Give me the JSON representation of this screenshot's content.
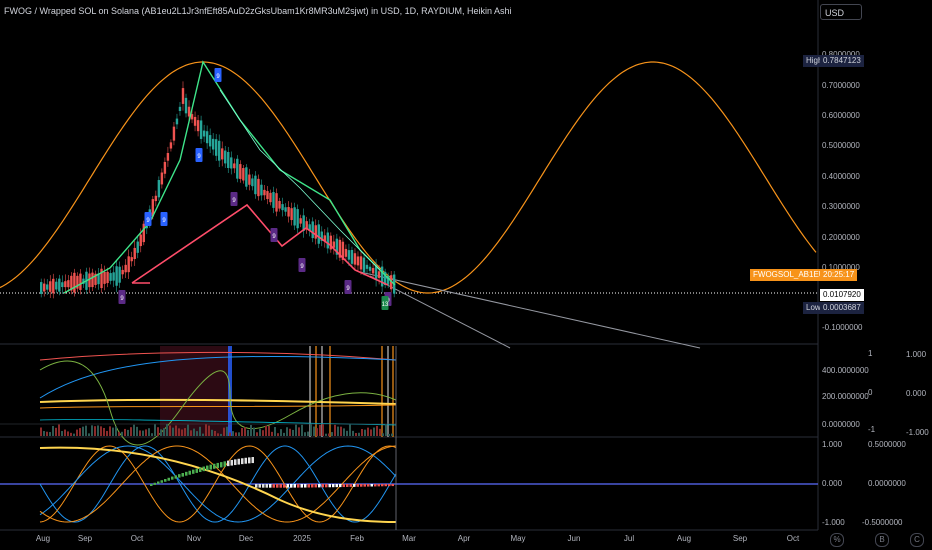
{
  "header": {
    "title": "FWOG / Wrapped SOL on Solana (AB1eu2L1Jr3nfEft85AuD2zGksUbam1Kr8MR3uM2sjwt) in USD, 1D, RAYDIUM, Heikin Ashi",
    "currency": "USD"
  },
  "price_axis": {
    "labels": [
      "0.8000000",
      "0.7000000",
      "0.6000000",
      "0.5000000",
      "0.4000000",
      "0.3000000",
      "0.2000000",
      "0.1000000",
      "-0.1000000"
    ],
    "high_label": "High",
    "high_value": "0.7847123",
    "symbol_tag": "FWOGSOL_AB1EU2.USD",
    "countdown": "20:25:17",
    "last_price": "0.0107920",
    "low_label": "Low",
    "low_value": "0.0003687"
  },
  "pane2_axis": {
    "left": [
      "400.0000000",
      "200.0000000",
      "0.0000000"
    ],
    "mid": [
      "1",
      "0",
      "-1"
    ],
    "right": [
      "1.000",
      "0.000",
      "-1.000"
    ]
  },
  "pane3_axis": {
    "left": [
      "1.000",
      "0.000",
      "-1.000"
    ],
    "right": [
      "0.5000000",
      "0.0000000",
      "-0.5000000"
    ]
  },
  "time_axis": [
    "Aug",
    "Sep",
    "Oct",
    "Nov",
    "Dec",
    "2025",
    "Feb",
    "Mar",
    "Apr",
    "May",
    "Jun",
    "Jul",
    "Aug",
    "Sep",
    "Oct"
  ],
  "corner_buttons": [
    "%",
    "B",
    "C"
  ],
  "signals": [
    "9",
    "9",
    "9",
    "9",
    "9",
    "9",
    "9",
    "9",
    "9",
    "9",
    "13"
  ],
  "colors": {
    "up": "#26a69a",
    "down": "#ef5350",
    "orange": "#f7931a",
    "bright_green": "#3ee58a",
    "pink_red": "#ff4d6a",
    "blue_label": "#2962ff",
    "purple_label": "#5b2a86",
    "zero_line": "#5b6cff"
  }
}
